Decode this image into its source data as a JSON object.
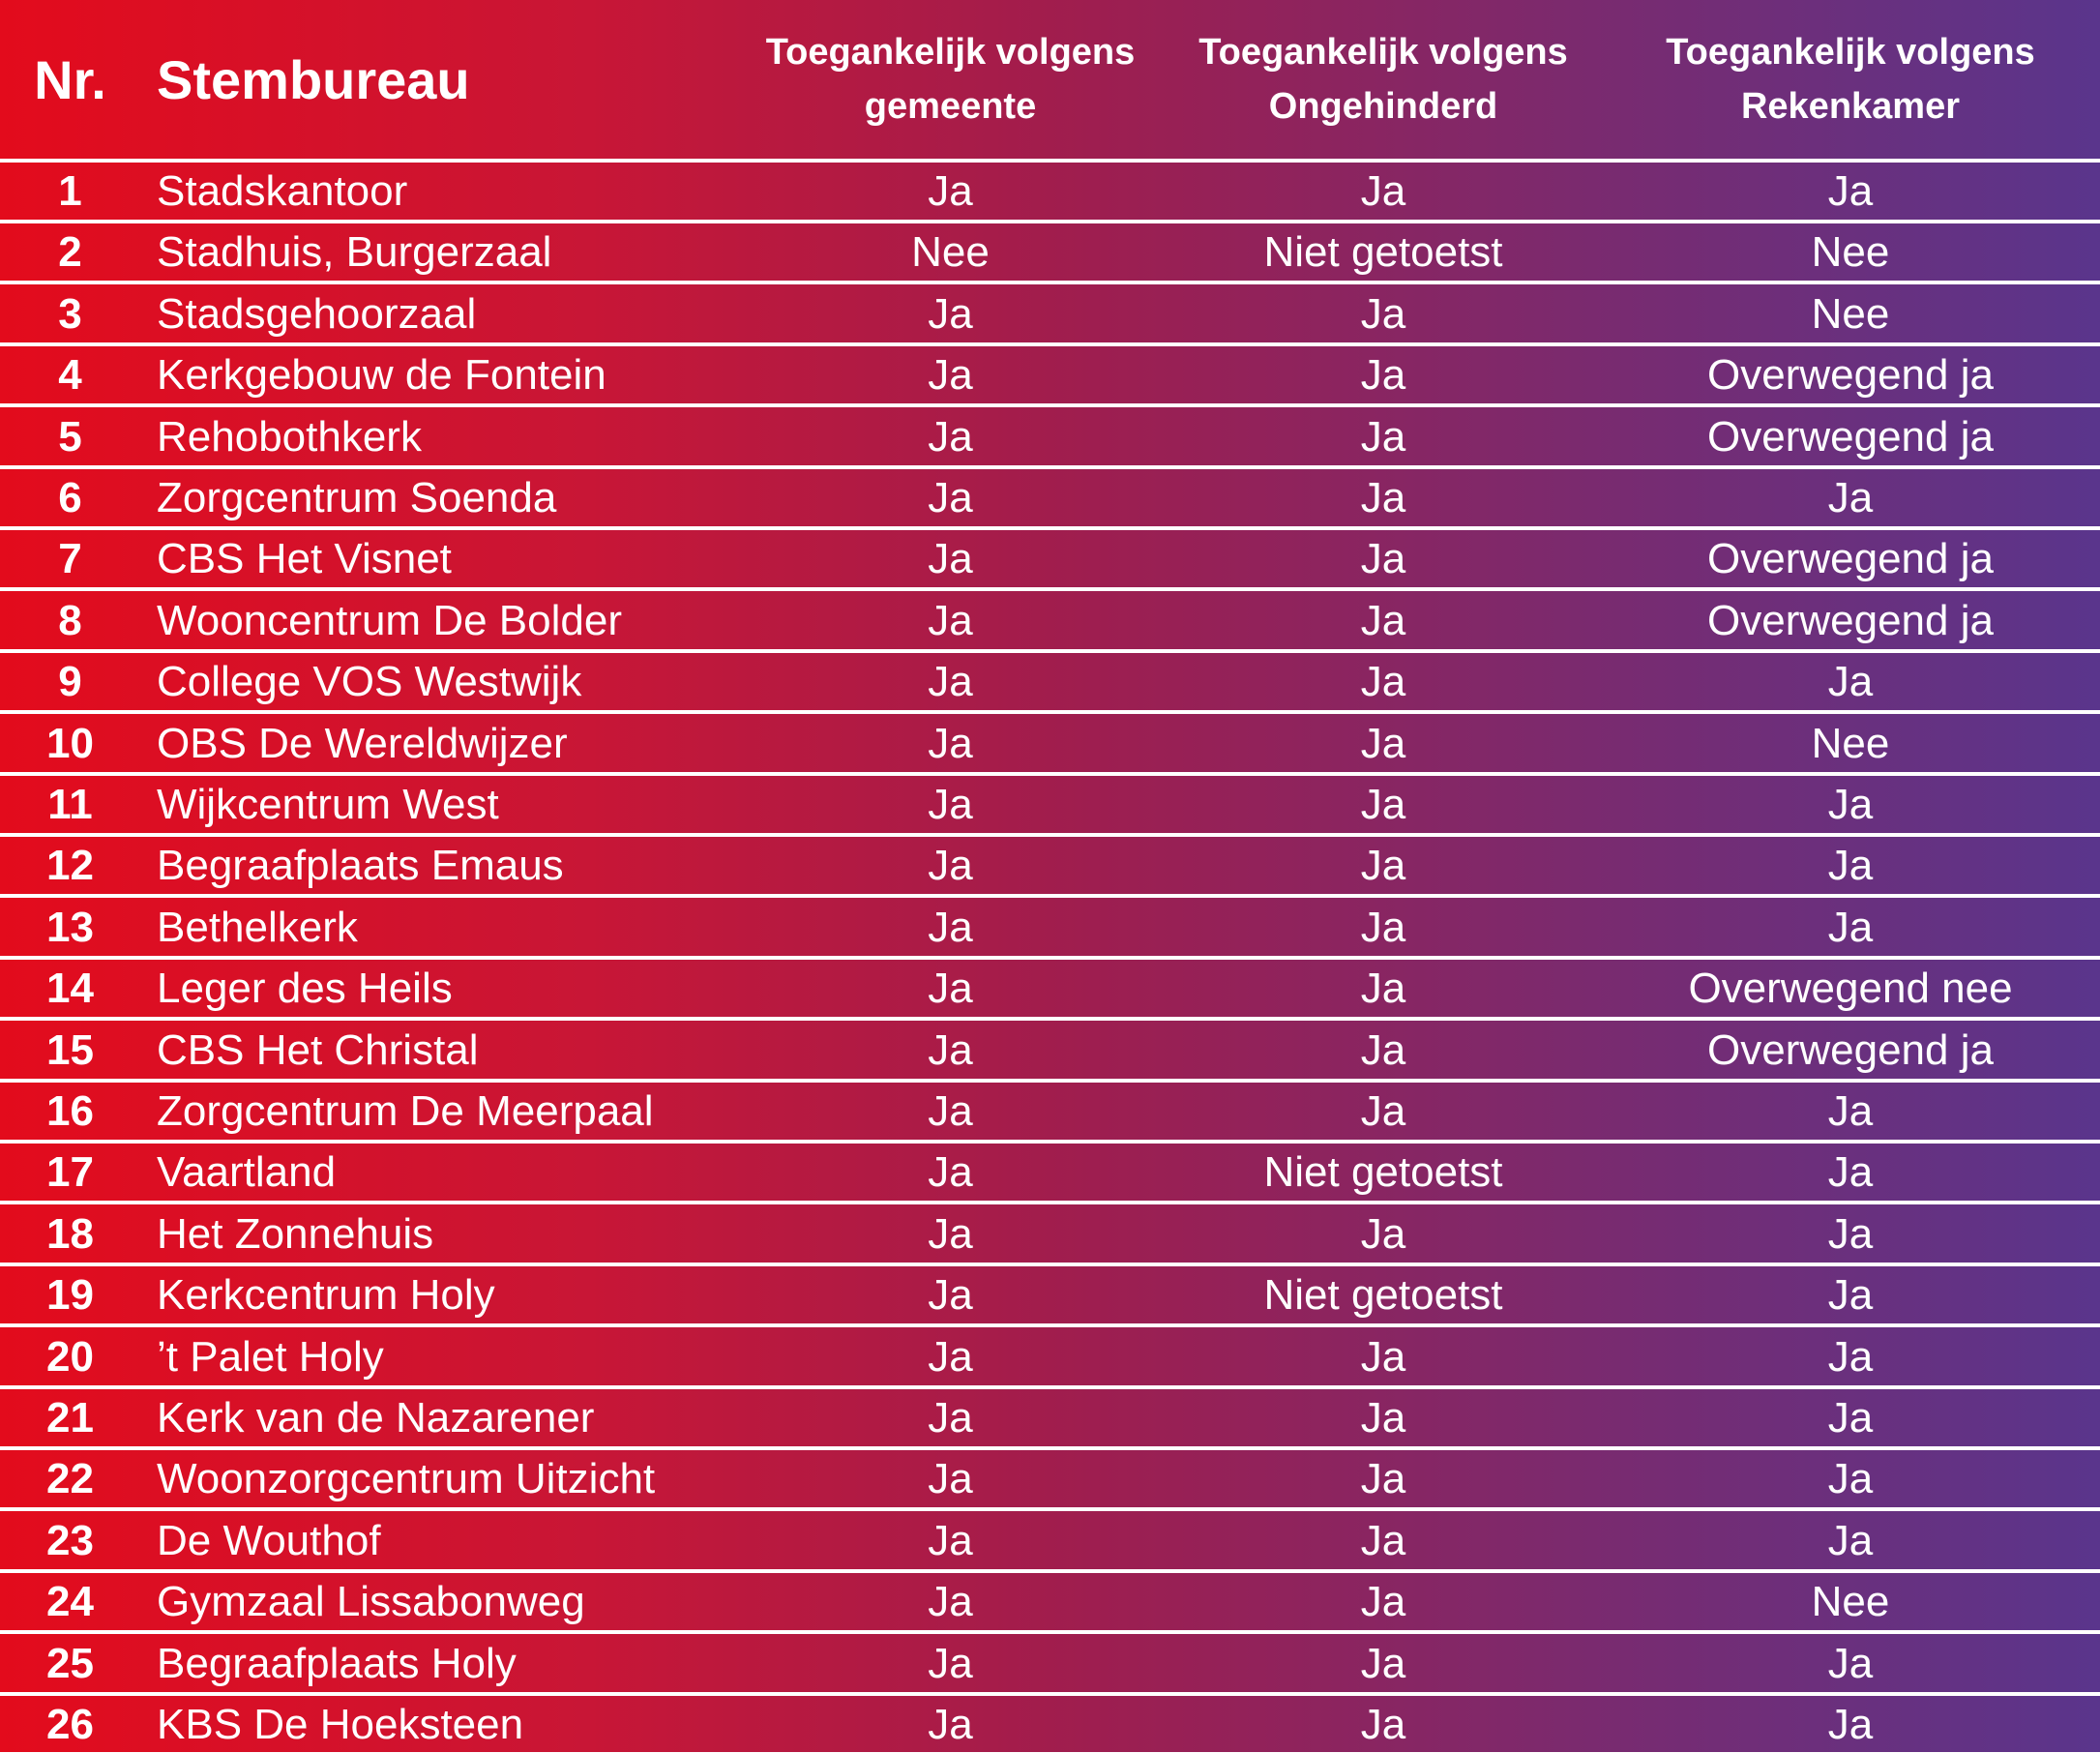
{
  "header": {
    "nr": "Nr.",
    "stembureau": "Stembureau",
    "col1_line1": "Toegankelijk volgens",
    "col1_line2": "gemeente",
    "col2_line1": "Toegankelijk volgens",
    "col2_line2": "Ongehinderd",
    "col3_line1": "Toegankelijk volgens",
    "col3_line2": "Rekenkamer"
  },
  "rows": [
    {
      "nr": "1",
      "name": "Stadskantoor",
      "gemeente": "Ja",
      "ongehinderd": "Ja",
      "rekenkamer": "Ja"
    },
    {
      "nr": "2",
      "name": "Stadhuis, Burgerzaal",
      "gemeente": "Nee",
      "ongehinderd": "Niet getoetst",
      "rekenkamer": "Nee"
    },
    {
      "nr": "3",
      "name": "Stadsgehoorzaal",
      "gemeente": "Ja",
      "ongehinderd": "Ja",
      "rekenkamer": "Nee"
    },
    {
      "nr": "4",
      "name": "Kerkgebouw de Fontein",
      "gemeente": "Ja",
      "ongehinderd": "Ja",
      "rekenkamer": "Overwegend ja"
    },
    {
      "nr": "5",
      "name": "Rehobothkerk",
      "gemeente": "Ja",
      "ongehinderd": "Ja",
      "rekenkamer": "Overwegend ja"
    },
    {
      "nr": "6",
      "name": "Zorgcentrum Soenda",
      "gemeente": "Ja",
      "ongehinderd": "Ja",
      "rekenkamer": "Ja"
    },
    {
      "nr": "7",
      "name": "CBS Het Visnet",
      "gemeente": "Ja",
      "ongehinderd": "Ja",
      "rekenkamer": "Overwegend ja"
    },
    {
      "nr": "8",
      "name": "Wooncentrum De Bolder",
      "gemeente": "Ja",
      "ongehinderd": "Ja",
      "rekenkamer": "Overwegend ja"
    },
    {
      "nr": "9",
      "name": "College VOS Westwijk",
      "gemeente": "Ja",
      "ongehinderd": "Ja",
      "rekenkamer": "Ja"
    },
    {
      "nr": "10",
      "name": "OBS De Wereldwijzer",
      "gemeente": "Ja",
      "ongehinderd": "Ja",
      "rekenkamer": "Nee"
    },
    {
      "nr": "11",
      "name": "Wijkcentrum West",
      "gemeente": "Ja",
      "ongehinderd": "Ja",
      "rekenkamer": "Ja"
    },
    {
      "nr": "12",
      "name": "Begraafplaats Emaus",
      "gemeente": "Ja",
      "ongehinderd": "Ja",
      "rekenkamer": "Ja"
    },
    {
      "nr": "13",
      "name": "Bethelkerk",
      "gemeente": "Ja",
      "ongehinderd": "Ja",
      "rekenkamer": "Ja"
    },
    {
      "nr": "14",
      "name": "Leger des Heils",
      "gemeente": "Ja",
      "ongehinderd": "Ja",
      "rekenkamer": "Overwegend nee"
    },
    {
      "nr": "15",
      "name": "CBS Het Christal",
      "gemeente": "Ja",
      "ongehinderd": "Ja",
      "rekenkamer": "Overwegend ja"
    },
    {
      "nr": "16",
      "name": "Zorgcentrum De Meerpaal",
      "gemeente": "Ja",
      "ongehinderd": "Ja",
      "rekenkamer": "Ja"
    },
    {
      "nr": "17",
      "name": "Vaartland",
      "gemeente": "Ja",
      "ongehinderd": "Niet getoetst",
      "rekenkamer": "Ja"
    },
    {
      "nr": "18",
      "name": "Het Zonnehuis",
      "gemeente": "Ja",
      "ongehinderd": "Ja",
      "rekenkamer": "Ja"
    },
    {
      "nr": "19",
      "name": "Kerkcentrum Holy",
      "gemeente": "Ja",
      "ongehinderd": "Niet getoetst",
      "rekenkamer": "Ja"
    },
    {
      "nr": "20",
      "name": "’t Palet Holy",
      "gemeente": "Ja",
      "ongehinderd": "Ja",
      "rekenkamer": "Ja"
    },
    {
      "nr": "21",
      "name": "Kerk van de Nazarener",
      "gemeente": "Ja",
      "ongehinderd": "Ja",
      "rekenkamer": "Ja"
    },
    {
      "nr": "22",
      "name": "Woonzorgcentrum Uitzicht",
      "gemeente": "Ja",
      "ongehinderd": "Ja",
      "rekenkamer": "Ja"
    },
    {
      "nr": "23",
      "name": "De Wouthof",
      "gemeente": "Ja",
      "ongehinderd": "Ja",
      "rekenkamer": "Ja"
    },
    {
      "nr": "24",
      "name": "Gymzaal Lissabonweg",
      "gemeente": "Ja",
      "ongehinderd": "Ja",
      "rekenkamer": "Nee"
    },
    {
      "nr": "25",
      "name": "Begraafplaats Holy",
      "gemeente": "Ja",
      "ongehinderd": "Ja",
      "rekenkamer": "Ja"
    },
    {
      "nr": "26",
      "name": "KBS De Hoeksteen",
      "gemeente": "Ja",
      "ongehinderd": "Ja",
      "rekenkamer": "Ja"
    }
  ]
}
